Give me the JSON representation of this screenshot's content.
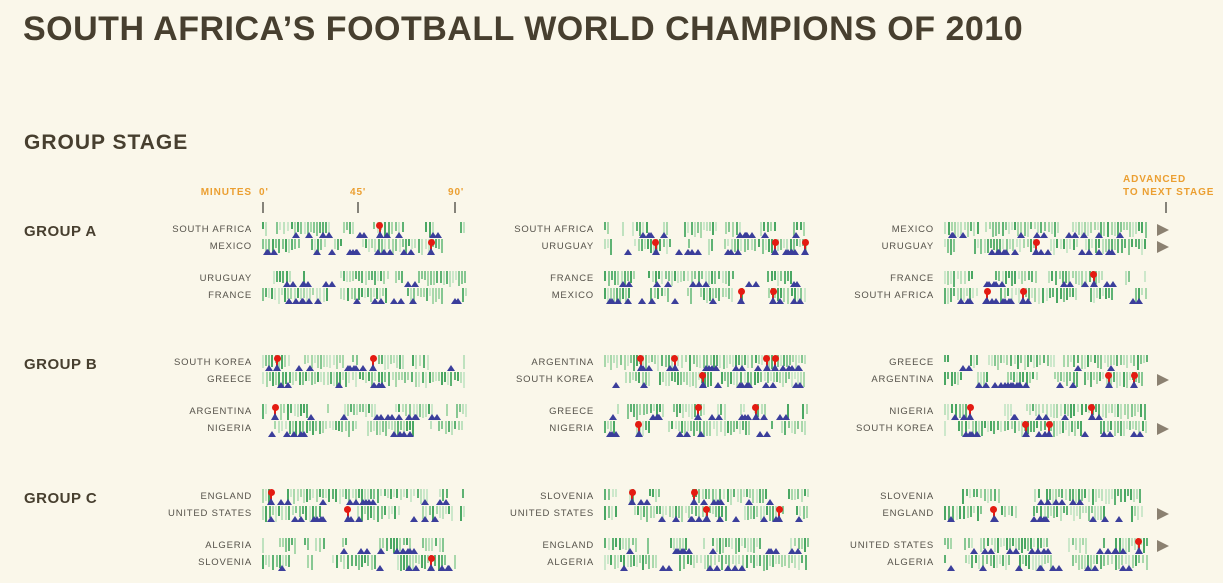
{
  "page": {
    "title": "SOUTH AFRICA’S FOOTBALL WORLD CHAMPIONS OF 2010",
    "section_title": "GROUP STAGE",
    "axis": {
      "minutes_label": "MINUTES",
      "tick_labels": [
        "0'",
        "45'",
        "90'"
      ]
    },
    "advanced_line1": "ADVANCED",
    "advanced_line2": "TO NEXT STAGE"
  },
  "colors": {
    "background": "#faf7ea",
    "title_brown": "#473f2f",
    "accent_orange": "#eb9f31",
    "team_gray": "#55524a",
    "attempt_blue": "#3b3e9b",
    "goal_red": "#e41b12",
    "advance_arrow": "#8b8171",
    "axis_tick_gray": "#85837a",
    "greens": [
      "#cde8cb",
      "#a9d8ab",
      "#86c792",
      "#5eb273",
      "#4aa763",
      "#bfe2bf"
    ]
  },
  "chart_data": {
    "type": "timeline-grid",
    "title": "SOUTH AFRICA’S FOOTBALL WORLD CHAMPIONS OF 2010",
    "section": "GROUP STAGE",
    "x_axis": {
      "label": "MINUTES",
      "ticks_minutes": [
        0,
        45,
        90
      ],
      "range_minutes": [
        0,
        96
      ]
    },
    "marker_legend": {
      "green_bar": "match activity tick",
      "blue_triangle": "attempt on goal",
      "red_dot": "goal scored (positioned at minute)",
      "gray_arrow": "advanced to next stage"
    },
    "groups": [
      {
        "name": "GROUP A",
        "columns": [
          {
            "matches": [
              {
                "teams": [
                  {
                    "name": "SOUTH AFRICA",
                    "goals": [
                      55
                    ],
                    "attempts": 13,
                    "advanced": false
                  },
                  {
                    "name": "MEXICO",
                    "goals": [
                      79
                    ],
                    "attempts": 15,
                    "advanced": false
                  }
                ]
              },
              {
                "teams": [
                  {
                    "name": "URUGUAY",
                    "goals": [],
                    "attempts": 9,
                    "advanced": false
                  },
                  {
                    "name": "FRANCE",
                    "goals": [],
                    "attempts": 14,
                    "advanced": false
                  }
                ]
              }
            ]
          },
          {
            "matches": [
              {
                "teams": [
                  {
                    "name": "SOUTH AFRICA",
                    "goals": [],
                    "attempts": 12,
                    "advanced": false
                  },
                  {
                    "name": "URUGUAY",
                    "goals": [
                      24,
                      80,
                      94
                    ],
                    "attempts": 14,
                    "advanced": false
                  }
                ]
              },
              {
                "teams": [
                  {
                    "name": "FRANCE",
                    "goals": [],
                    "attempts": 11,
                    "advanced": false
                  },
                  {
                    "name": "MEXICO",
                    "goals": [
                      64,
                      79
                    ],
                    "attempts": 12,
                    "advanced": false
                  }
                ]
              }
            ]
          },
          {
            "matches": [
              {
                "teams": [
                  {
                    "name": "MEXICO",
                    "goals": [],
                    "attempts": 12,
                    "advanced": true
                  },
                  {
                    "name": "URUGUAY",
                    "goals": [
                      43
                    ],
                    "attempts": 13,
                    "advanced": true
                  }
                ]
              },
              {
                "teams": [
                  {
                    "name": "FRANCE",
                    "goals": [
                      70
                    ],
                    "attempts": 10,
                    "advanced": false
                  },
                  {
                    "name": "SOUTH AFRICA",
                    "goals": [
                      20,
                      37
                    ],
                    "attempts": 13,
                    "advanced": false
                  }
                ]
              }
            ]
          }
        ]
      },
      {
        "name": "GROUP B",
        "columns": [
          {
            "matches": [
              {
                "teams": [
                  {
                    "name": "SOUTH KOREA",
                    "goals": [
                      7,
                      52
                    ],
                    "attempts": 9,
                    "advanced": false
                  },
                  {
                    "name": "GREECE",
                    "goals": [],
                    "attempts": 6,
                    "advanced": false
                  }
                ]
              },
              {
                "teams": [
                  {
                    "name": "ARGENTINA",
                    "goals": [
                      6
                    ],
                    "attempts": 13,
                    "advanced": false
                  },
                  {
                    "name": "NIGERIA",
                    "goals": [],
                    "attempts": 9,
                    "advanced": false
                  }
                ]
              }
            ]
          },
          {
            "matches": [
              {
                "teams": [
                  {
                    "name": "ARGENTINA",
                    "goals": [
                      17,
                      33,
                      76,
                      80
                    ],
                    "attempts": 15,
                    "advanced": false
                  },
                  {
                    "name": "SOUTH KOREA",
                    "goals": [
                      46
                    ],
                    "attempts": 11,
                    "advanced": false
                  }
                ]
              },
              {
                "teams": [
                  {
                    "name": "GREECE",
                    "goals": [
                      44,
                      71
                    ],
                    "attempts": 13,
                    "advanced": false
                  },
                  {
                    "name": "NIGERIA",
                    "goals": [
                      16
                    ],
                    "attempts": 8,
                    "advanced": false
                  }
                ]
              }
            ]
          },
          {
            "matches": [
              {
                "teams": [
                  {
                    "name": "GREECE",
                    "goals": [],
                    "attempts": 4,
                    "advanced": false
                  },
                  {
                    "name": "ARGENTINA",
                    "goals": [
                      77,
                      89
                    ],
                    "attempts": 14,
                    "advanced": true
                  }
                ]
              },
              {
                "teams": [
                  {
                    "name": "NIGERIA",
                    "goals": [
                      12,
                      69
                    ],
                    "attempts": 9,
                    "advanced": false
                  },
                  {
                    "name": "SOUTH KOREA",
                    "goals": [
                      38,
                      49
                    ],
                    "attempts": 12,
                    "advanced": true
                  }
                ]
              }
            ]
          }
        ]
      },
      {
        "name": "GROUP C",
        "columns": [
          {
            "matches": [
              {
                "teams": [
                  {
                    "name": "ENGLAND",
                    "goals": [
                      4
                    ],
                    "attempts": 12,
                    "advanced": false
                  },
                  {
                    "name": "UNITED STATES",
                    "goals": [
                      40
                    ],
                    "attempts": 12,
                    "advanced": false
                  }
                ]
              },
              {
                "teams": [
                  {
                    "name": "ALGERIA",
                    "goals": [],
                    "attempts": 10,
                    "advanced": false
                  },
                  {
                    "name": "SLOVENIA",
                    "goals": [
                      79
                    ],
                    "attempts": 7,
                    "advanced": false
                  }
                ]
              }
            ]
          },
          {
            "matches": [
              {
                "teams": [
                  {
                    "name": "SLOVENIA",
                    "goals": [
                      13,
                      42
                    ],
                    "attempts": 8,
                    "advanced": false
                  },
                  {
                    "name": "UNITED STATES",
                    "goals": [
                      48,
                      82
                    ],
                    "attempts": 11,
                    "advanced": false
                  }
                ]
              },
              {
                "teams": [
                  {
                    "name": "ENGLAND",
                    "goals": [],
                    "attempts": 12,
                    "advanced": false
                  },
                  {
                    "name": "ALGERIA",
                    "goals": [],
                    "attempts": 8,
                    "advanced": false
                  }
                ]
              }
            ]
          },
          {
            "matches": [
              {
                "teams": [
                  {
                    "name": "SLOVENIA",
                    "goals": [],
                    "attempts": 6,
                    "advanced": false
                  },
                  {
                    "name": "ENGLAND",
                    "goals": [
                      23
                    ],
                    "attempts": 10,
                    "advanced": true
                  }
                ]
              },
              {
                "teams": [
                  {
                    "name": "UNITED STATES",
                    "goals": [
                      91
                    ],
                    "attempts": 14,
                    "advanced": true
                  },
                  {
                    "name": "ALGERIA",
                    "goals": [],
                    "attempts": 11,
                    "advanced": false
                  }
                ]
              }
            ]
          }
        ]
      }
    ]
  }
}
